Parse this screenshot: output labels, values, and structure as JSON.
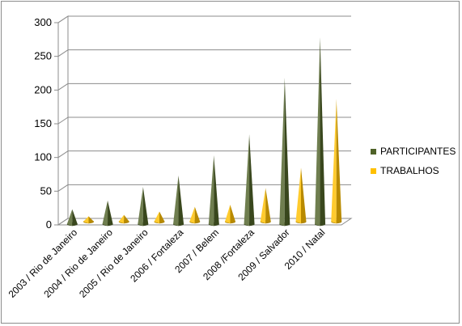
{
  "chart_data": {
    "type": "bar",
    "style": "3d-cone",
    "categories": [
      "2003 / Rio de Janeiro",
      "2004 / Rio de Janeiro",
      "2005 / Rio de Janeiro",
      "2006 / Fortaleza",
      "2007 / Belem",
      "2008 /Fortaleza",
      "2009 / Salvador",
      "2010 / Natal"
    ],
    "series": [
      {
        "name": "PARTICIPANTES",
        "color": "#4f6228",
        "values": [
          22,
          35,
          55,
          72,
          102,
          133,
          217,
          277
        ]
      },
      {
        "name": "TRABALHOS",
        "color": "#ffc000",
        "values": [
          8,
          10,
          15,
          22,
          25,
          50,
          80,
          182
        ]
      }
    ],
    "ylim": [
      0,
      300
    ],
    "yticks": [
      0,
      50,
      100,
      150,
      200,
      250,
      300
    ],
    "grid": true,
    "legend": "right"
  }
}
